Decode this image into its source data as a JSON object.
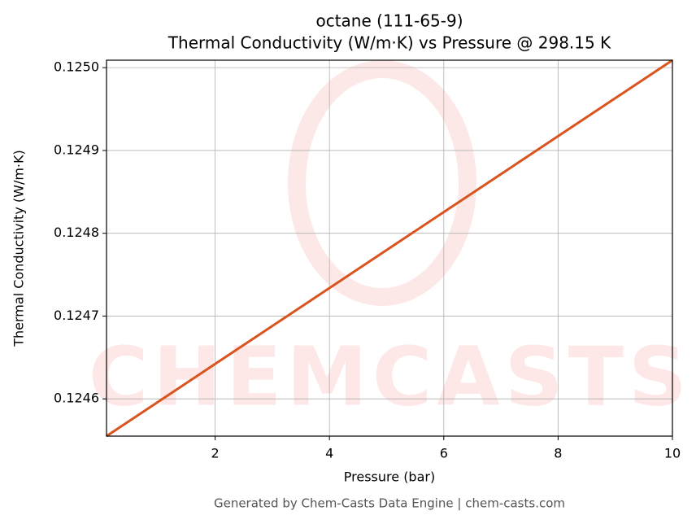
{
  "chart_data": {
    "type": "line",
    "title": "octane (111-65-9)",
    "subtitle": "Thermal Conductivity (W/m·K) vs Pressure @ 298.15 K",
    "x_label": "Pressure (bar)",
    "y_label": "Thermal Conductivity (W/m·K)",
    "watermark": "CHEMCASTS",
    "footer": "Generated by Chem-Casts Data Engine | chem-casts.com",
    "x": [
      0.1,
      10
    ],
    "series": [
      {
        "name": "Thermal Conductivity",
        "color": "#d9541e",
        "values": [
          0.124555,
          0.125009
        ]
      }
    ],
    "xlim": [
      0.1,
      10
    ],
    "xticks": [
      2,
      4,
      6,
      8,
      10
    ],
    "ylim": [
      0.124555,
      0.125009
    ],
    "yticks": [
      0.1246,
      0.1247,
      0.1248,
      0.1249,
      {
        "value": 0.125,
        "label": "0.1250"
      }
    ],
    "grid": true
  }
}
